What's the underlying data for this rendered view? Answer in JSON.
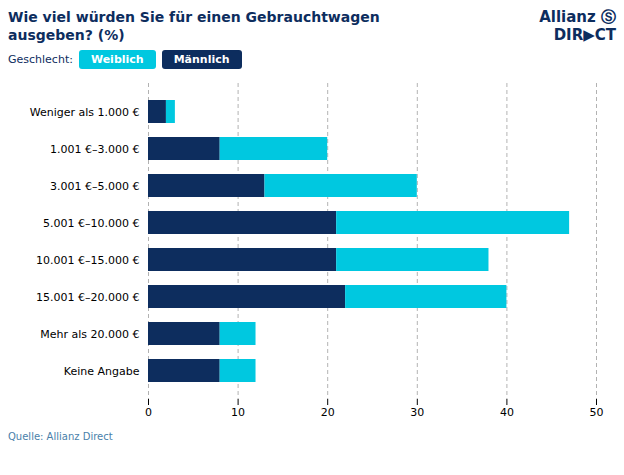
{
  "chart_data": {
    "type": "bar",
    "orientation": "horizontal",
    "stacked": true,
    "title": "Wie viel würden Sie für einen Gebrauchtwagen ausgeben? (%)",
    "annotations": [
      "Geschlecht:",
      "Allianz Ⓢ",
      "DIR▶CT"
    ],
    "source": "Quelle: Allianz Direct",
    "categories": [
      "Weniger als 1.000 €",
      "1.001 €–3.000 €",
      "3.001 €–5.000 €",
      "5.001 €–10.000 €",
      "10.001 €–15.000 €",
      "15.001 €–20.000 €",
      "Mehr als 20.000 €",
      "Keine Angabe"
    ],
    "series": [
      {
        "name": "Männlich",
        "color": "#0d2d5e",
        "values": [
          2,
          8,
          13,
          21,
          21,
          22,
          8,
          8
        ]
      },
      {
        "name": "Weiblich",
        "color": "#00c8e0",
        "values": [
          1,
          12,
          17,
          26,
          17,
          18,
          4,
          4
        ]
      }
    ],
    "xlim": [
      0,
      50
    ],
    "xticks": [
      0,
      10,
      20,
      30,
      40,
      50
    ],
    "grid": true,
    "legend": "top-left"
  }
}
